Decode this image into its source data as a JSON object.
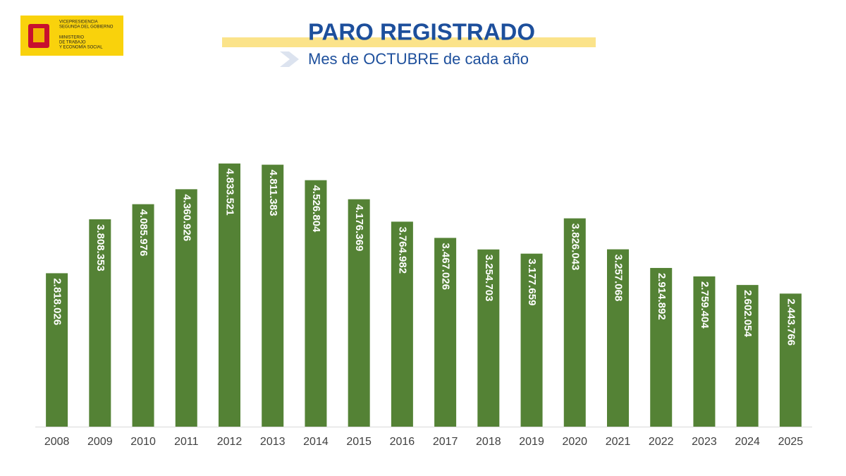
{
  "logo": {
    "lines": [
      "VICEPRESIDENCIA",
      "SEGUNDA DEL GOBIERNO",
      "MINISTERIO",
      "DE TRABAJO",
      "Y ECONOMÍA SOCIAL"
    ]
  },
  "chart_data": {
    "type": "bar",
    "title": "PARO REGISTRADO",
    "subtitle": "Mes de OCTUBRE de cada año",
    "categories": [
      "2008",
      "2009",
      "2010",
      "2011",
      "2012",
      "2013",
      "2014",
      "2015",
      "2016",
      "2017",
      "2018",
      "2019",
      "2020",
      "2021",
      "2022",
      "2023",
      "2024",
      "2025"
    ],
    "values": [
      2818026,
      3808353,
      4085976,
      4360926,
      4833521,
      4811383,
      4526804,
      4176369,
      3764982,
      3467026,
      3254703,
      3177659,
      3826043,
      3257068,
      2914892,
      2759404,
      2602054,
      2443766
    ],
    "value_labels": [
      "2.818.026",
      "3.808.353",
      "4.085.976",
      "4.360.926",
      "4.833.521",
      "4.811.383",
      "4.526.804",
      "4.176.369",
      "3.764.982",
      "3.467.026",
      "3.254.703",
      "3.177.659",
      "3.826.043",
      "3.257.068",
      "2.914.892",
      "2.759.404",
      "2.602.054",
      "2.443.766"
    ],
    "color": "#548235",
    "ylim": [
      0,
      5000000
    ]
  }
}
